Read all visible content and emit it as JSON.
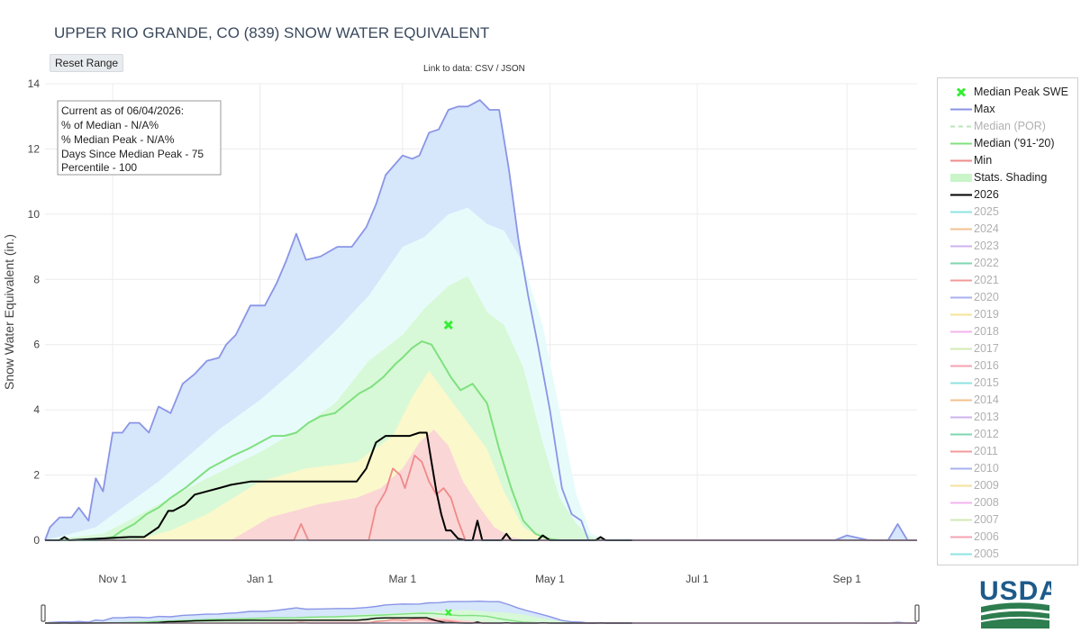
{
  "header": {
    "title": "UPPER RIO GRANDE, CO (839) SNOW WATER EQUIVALENT",
    "reset_label": "Reset Range",
    "links_prefix": "Link to data: ",
    "link_csv": "CSV",
    "link_sep": " / ",
    "link_json": "JSON"
  },
  "info_box": {
    "line1": "Current as of 06/04/2026:",
    "line2": "% of Median - N/A%",
    "line3": "% Median Peak - N/A%",
    "line4": "Days Since Median Peak - 75",
    "line5": "Percentile - 100"
  },
  "legend": {
    "items": [
      {
        "label": "Median Peak SWE",
        "kind": "marker",
        "color": "#33ee33",
        "active": true
      },
      {
        "label": "Max",
        "kind": "line",
        "color": "#8a95e6",
        "active": true
      },
      {
        "label": "Median (POR)",
        "kind": "dash",
        "color": "#b9e6b9",
        "active": false
      },
      {
        "label": "Median ('91-'20)",
        "kind": "line",
        "color": "#7fe07f",
        "active": true
      },
      {
        "label": "Min",
        "kind": "line",
        "color": "#ef8a8a",
        "active": true
      },
      {
        "label": "Stats. Shading",
        "kind": "fill",
        "color": "#c9f5c9",
        "active": true
      },
      {
        "label": "2026",
        "kind": "line",
        "color": "#000000",
        "active": true
      },
      {
        "label": "2025",
        "kind": "line",
        "color": "#8fe3e3",
        "active": false
      },
      {
        "label": "2024",
        "kind": "line",
        "color": "#f5c08f",
        "active": false
      },
      {
        "label": "2023",
        "kind": "line",
        "color": "#cdb3ef",
        "active": false
      },
      {
        "label": "2022",
        "kind": "line",
        "color": "#7fd6b0",
        "active": false
      },
      {
        "label": "2021",
        "kind": "line",
        "color": "#f39a9a",
        "active": false
      },
      {
        "label": "2020",
        "kind": "line",
        "color": "#a9b1ef",
        "active": false
      },
      {
        "label": "2019",
        "kind": "line",
        "color": "#f5e29a",
        "active": false
      },
      {
        "label": "2018",
        "kind": "line",
        "color": "#f5b3ef",
        "active": false
      },
      {
        "label": "2017",
        "kind": "line",
        "color": "#d3eab3",
        "active": false
      },
      {
        "label": "2016",
        "kind": "line",
        "color": "#f5a3b3",
        "active": false
      },
      {
        "label": "2015",
        "kind": "line",
        "color": "#8fe3e3",
        "active": false
      },
      {
        "label": "2014",
        "kind": "line",
        "color": "#f5c08f",
        "active": false
      },
      {
        "label": "2013",
        "kind": "line",
        "color": "#cdb3ef",
        "active": false
      },
      {
        "label": "2012",
        "kind": "line",
        "color": "#7fd6b0",
        "active": false
      },
      {
        "label": "2011",
        "kind": "line",
        "color": "#f39a9a",
        "active": false
      },
      {
        "label": "2010",
        "kind": "line",
        "color": "#a9b1ef",
        "active": false
      },
      {
        "label": "2009",
        "kind": "line",
        "color": "#f5e29a",
        "active": false
      },
      {
        "label": "2008",
        "kind": "line",
        "color": "#f5b3ef",
        "active": false
      },
      {
        "label": "2007",
        "kind": "line",
        "color": "#d3eab3",
        "active": false
      },
      {
        "label": "2006",
        "kind": "line",
        "color": "#f5a3b3",
        "active": false
      },
      {
        "label": "2005",
        "kind": "line",
        "color": "#8fe3e3",
        "active": false
      }
    ]
  },
  "logo": {
    "text": "USDA",
    "colors": {
      "blue": "#1d5a8a",
      "green": "#2e7d4f"
    }
  },
  "colors": {
    "max_fill": "#d6e6fb",
    "p90_fill": "#e8fbfb",
    "p70_fill": "#d7f9d7",
    "p30_fill": "#fbf8cc",
    "p10_fill": "#fbd6d6",
    "grid": "#ececec",
    "axis_text": "#444444"
  },
  "chart_data": {
    "type": "line",
    "xlabel": "",
    "ylabel": "Snow Water Equivalent (in.)",
    "ylim": [
      0,
      14
    ],
    "yticks": [
      0,
      2,
      4,
      6,
      8,
      10,
      12,
      14
    ],
    "x_tick_labels": [
      "Nov 1",
      "Jan 1",
      "Mar 1",
      "May 1",
      "Jul 1",
      "Sep 1"
    ],
    "x_tick_dates": [
      "2025-11-01",
      "2026-01-01",
      "2026-03-01",
      "2026-05-01",
      "2026-07-01",
      "2026-09-01"
    ],
    "xrange": [
      "2025-10-04",
      "2026-09-30"
    ],
    "grid": true,
    "legend_position": "right",
    "series": [
      {
        "name": "Max",
        "x": [
          "2025-10-04",
          "2025-10-06",
          "2025-10-10",
          "2025-10-15",
          "2025-10-18",
          "2025-10-22",
          "2025-10-25",
          "2025-10-28",
          "2025-11-01",
          "2025-11-05",
          "2025-11-08",
          "2025-11-12",
          "2025-11-16",
          "2025-11-20",
          "2025-11-25",
          "2025-11-30",
          "2025-12-05",
          "2025-12-10",
          "2025-12-15",
          "2025-12-18",
          "2025-12-22",
          "2025-12-28",
          "2026-01-03",
          "2026-01-08",
          "2026-01-12",
          "2026-01-16",
          "2026-01-20",
          "2026-01-26",
          "2026-02-02",
          "2026-02-08",
          "2026-02-14",
          "2026-02-18",
          "2026-02-22",
          "2026-03-01",
          "2026-03-05",
          "2026-03-08",
          "2026-03-12",
          "2026-03-16",
          "2026-03-20",
          "2026-03-24",
          "2026-03-28",
          "2026-04-02",
          "2026-04-06",
          "2026-04-10",
          "2026-04-14",
          "2026-04-18",
          "2026-04-22",
          "2026-04-26",
          "2026-05-01",
          "2026-05-06",
          "2026-05-10",
          "2026-05-14",
          "2026-05-17",
          "2026-05-20",
          "2026-05-25",
          "2026-06-01",
          "2026-08-27",
          "2026-09-01",
          "2026-09-10",
          "2026-09-14",
          "2026-09-18",
          "2026-09-22",
          "2026-09-26",
          "2026-09-30"
        ],
        "y": [
          0.0,
          0.4,
          0.7,
          0.7,
          1.0,
          0.6,
          1.9,
          1.5,
          3.3,
          3.3,
          3.6,
          3.6,
          3.3,
          4.1,
          3.9,
          4.8,
          5.1,
          5.5,
          5.6,
          6.0,
          6.3,
          7.2,
          7.2,
          7.9,
          8.6,
          9.4,
          8.6,
          8.7,
          9.0,
          9.0,
          9.6,
          10.3,
          11.2,
          11.8,
          11.7,
          11.8,
          12.5,
          12.6,
          13.2,
          13.3,
          13.3,
          13.5,
          13.2,
          13.2,
          11.4,
          9.2,
          7.5,
          6.0,
          4.0,
          1.6,
          0.8,
          0.6,
          0.0,
          0.0,
          0.0,
          0.0,
          0.0,
          0.15,
          0.0,
          0.0,
          0.0,
          0.5,
          0.0,
          0.0
        ]
      },
      {
        "name": "90th percentile (shading)",
        "x": [
          "2025-10-04",
          "2025-10-25",
          "2025-11-05",
          "2025-11-20",
          "2025-12-01",
          "2025-12-15",
          "2026-01-01",
          "2026-01-15",
          "2026-02-01",
          "2026-02-15",
          "2026-03-01",
          "2026-03-10",
          "2026-03-20",
          "2026-03-28",
          "2026-04-05",
          "2026-04-12",
          "2026-04-20",
          "2026-04-28",
          "2026-05-05",
          "2026-05-12",
          "2026-05-18",
          "2026-05-25"
        ],
        "y": [
          0.0,
          0.4,
          1.0,
          1.8,
          2.5,
          3.4,
          4.3,
          5.2,
          6.4,
          7.5,
          9.0,
          9.3,
          10.0,
          10.2,
          9.7,
          9.5,
          8.5,
          6.6,
          4.0,
          1.4,
          0.2,
          0.0
        ]
      },
      {
        "name": "70th percentile (shading)",
        "x": [
          "2025-10-04",
          "2025-10-28",
          "2025-11-10",
          "2025-11-25",
          "2025-12-10",
          "2026-01-01",
          "2026-01-15",
          "2026-02-01",
          "2026-02-15",
          "2026-03-01",
          "2026-03-10",
          "2026-03-20",
          "2026-03-28",
          "2026-04-05",
          "2026-04-12",
          "2026-04-20",
          "2026-04-28",
          "2026-05-05",
          "2026-05-12",
          "2026-05-18",
          "2026-05-25"
        ],
        "y": [
          0.0,
          0.2,
          0.7,
          1.3,
          1.9,
          2.7,
          3.3,
          4.2,
          5.5,
          6.3,
          7.1,
          7.8,
          8.1,
          7.0,
          6.6,
          5.3,
          3.0,
          1.3,
          0.5,
          0.1,
          0.0
        ]
      },
      {
        "name": "Median ('91-'20)",
        "x": [
          "2025-10-04",
          "2025-10-25",
          "2025-11-01",
          "2025-11-05",
          "2025-11-10",
          "2025-11-15",
          "2025-11-20",
          "2025-11-25",
          "2025-12-01",
          "2025-12-06",
          "2025-12-11",
          "2025-12-16",
          "2025-12-21",
          "2025-12-27",
          "2026-01-01",
          "2026-01-06",
          "2026-01-11",
          "2026-01-16",
          "2026-01-21",
          "2026-01-26",
          "2026-02-01",
          "2026-02-06",
          "2026-02-11",
          "2026-02-16",
          "2026-02-21",
          "2026-02-26",
          "2026-03-01",
          "2026-03-05",
          "2026-03-09",
          "2026-03-13",
          "2026-03-17",
          "2026-03-21",
          "2026-03-25",
          "2026-03-30",
          "2026-04-05",
          "2026-04-10",
          "2026-04-15",
          "2026-04-20",
          "2026-04-25",
          "2026-04-30",
          "2026-05-05",
          "2026-05-10"
        ],
        "y": [
          0.0,
          0.0,
          0.1,
          0.3,
          0.5,
          0.8,
          1.0,
          1.3,
          1.6,
          1.9,
          2.2,
          2.4,
          2.6,
          2.8,
          3.0,
          3.2,
          3.2,
          3.3,
          3.6,
          3.8,
          3.9,
          4.2,
          4.5,
          4.7,
          5.0,
          5.4,
          5.6,
          5.9,
          6.1,
          6.0,
          5.5,
          5.0,
          4.6,
          4.8,
          4.2,
          2.8,
          1.6,
          0.6,
          0.2,
          0.05,
          0.0,
          0.0
        ]
      },
      {
        "name": "30th percentile (shading)",
        "x": [
          "2025-10-04",
          "2025-11-10",
          "2025-11-25",
          "2025-12-10",
          "2026-01-01",
          "2026-01-20",
          "2026-02-10",
          "2026-02-25",
          "2026-03-05",
          "2026-03-12",
          "2026-03-20",
          "2026-03-28",
          "2026-04-05",
          "2026-04-12",
          "2026-04-20",
          "2026-04-28",
          "2026-05-05"
        ],
        "y": [
          0.0,
          0.0,
          0.3,
          0.8,
          1.8,
          2.2,
          2.4,
          3.2,
          4.4,
          5.2,
          4.4,
          3.6,
          2.8,
          1.5,
          0.4,
          0.05,
          0.0
        ]
      },
      {
        "name": "10th percentile (shading)",
        "x": [
          "2025-10-04",
          "2025-12-20",
          "2026-01-05",
          "2026-01-25",
          "2026-02-10",
          "2026-02-20",
          "2026-03-01",
          "2026-03-08",
          "2026-03-14",
          "2026-03-20",
          "2026-03-26",
          "2026-04-02",
          "2026-04-08",
          "2026-04-15",
          "2026-04-22",
          "2026-04-30"
        ],
        "y": [
          0.0,
          0.0,
          0.7,
          1.1,
          1.3,
          1.6,
          2.2,
          3.0,
          3.4,
          2.9,
          1.8,
          1.0,
          0.4,
          0.1,
          0.0,
          0.0
        ]
      },
      {
        "name": "Min",
        "x": [
          "2025-10-04",
          "2026-01-15",
          "2026-01-18",
          "2026-01-21",
          "2026-02-15",
          "2026-02-18",
          "2026-02-22",
          "2026-02-25",
          "2026-02-28",
          "2026-03-02",
          "2026-03-04",
          "2026-03-06",
          "2026-03-09",
          "2026-03-12",
          "2026-03-15",
          "2026-03-18",
          "2026-03-21",
          "2026-03-24",
          "2026-03-27",
          "2026-04-01",
          "2026-09-30"
        ],
        "y": [
          0.0,
          0.0,
          0.5,
          0.0,
          0.0,
          1.0,
          1.5,
          2.2,
          2.0,
          1.6,
          2.1,
          2.6,
          2.4,
          1.8,
          1.4,
          1.6,
          1.3,
          0.6,
          0.0,
          0.0,
          0.0
        ]
      },
      {
        "name": "2026",
        "x": [
          "2025-10-04",
          "2025-10-10",
          "2025-10-12",
          "2025-10-14",
          "2025-11-08",
          "2025-11-14",
          "2025-11-20",
          "2025-11-24",
          "2025-11-26",
          "2025-12-01",
          "2025-12-05",
          "2025-12-10",
          "2025-12-15",
          "2025-12-20",
          "2025-12-28",
          "2026-01-10",
          "2026-02-10",
          "2026-02-14",
          "2026-02-18",
          "2026-02-22",
          "2026-03-01",
          "2026-03-04",
          "2026-03-08",
          "2026-03-11",
          "2026-03-13",
          "2026-03-15",
          "2026-03-17",
          "2026-03-19",
          "2026-03-21",
          "2026-03-24",
          "2026-03-27",
          "2026-03-30",
          "2026-04-01",
          "2026-04-03",
          "2026-04-05",
          "2026-04-08",
          "2026-04-11",
          "2026-04-13",
          "2026-04-15",
          "2026-04-18",
          "2026-04-20",
          "2026-04-22",
          "2026-04-26",
          "2026-04-28",
          "2026-05-01",
          "2026-05-04",
          "2026-05-08",
          "2026-05-11",
          "2026-05-13",
          "2026-05-16",
          "2026-05-20",
          "2026-05-22",
          "2026-05-24",
          "2026-06-04"
        ],
        "y": [
          0.0,
          0.0,
          0.1,
          0.0,
          0.1,
          0.1,
          0.4,
          0.9,
          0.9,
          1.1,
          1.4,
          1.5,
          1.6,
          1.7,
          1.8,
          1.8,
          1.8,
          2.2,
          3.0,
          3.2,
          3.2,
          3.2,
          3.3,
          3.3,
          2.4,
          1.5,
          0.8,
          0.3,
          0.3,
          0.05,
          0.0,
          0.0,
          0.6,
          0.0,
          0.0,
          0.0,
          0.0,
          0.2,
          0.0,
          0.0,
          0.0,
          0.0,
          0.0,
          0.15,
          0.0,
          0.0,
          0.0,
          0.0,
          0.0,
          0.0,
          0.0,
          0.1,
          0.0,
          0.0
        ]
      }
    ],
    "median_peak": {
      "date": "2026-03-20",
      "value": 6.6
    }
  }
}
